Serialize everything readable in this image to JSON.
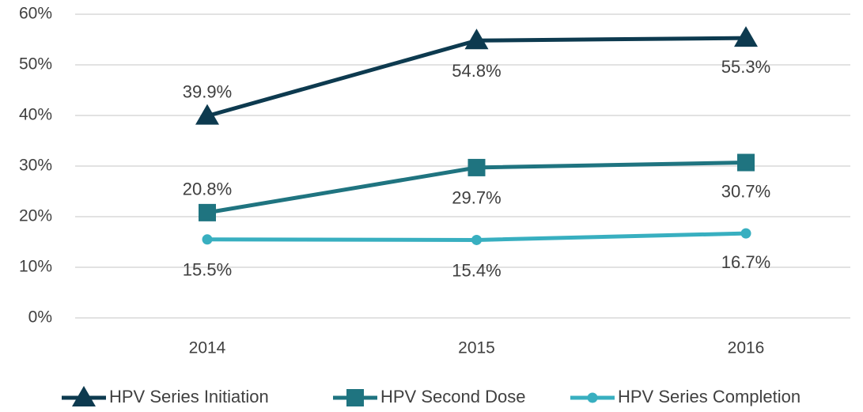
{
  "chart_data": {
    "type": "line",
    "categories": [
      "2014",
      "2015",
      "2016"
    ],
    "series": [
      {
        "name": "HPV Series Initiation",
        "color": "#0d3a4f",
        "marker": "triangle",
        "values": [
          39.9,
          54.8,
          55.3
        ],
        "value_labels": [
          "39.9%",
          "54.8%",
          "55.3%"
        ]
      },
      {
        "name": "HPV Second Dose",
        "color": "#1f7480",
        "marker": "square",
        "values": [
          20.8,
          29.7,
          30.7
        ],
        "value_labels": [
          "20.8%",
          "29.7%",
          "30.7%"
        ]
      },
      {
        "name": "HPV Series Completion",
        "color": "#38afc0",
        "marker": "circle",
        "values": [
          15.5,
          15.4,
          16.7
        ],
        "value_labels": [
          "15.5%",
          "15.4%",
          "16.7%"
        ]
      }
    ],
    "ylim": [
      0,
      60
    ],
    "yticks": [
      {
        "value": 0,
        "label": "0%"
      },
      {
        "value": 10,
        "label": "10%"
      },
      {
        "value": 20,
        "label": "20%"
      },
      {
        "value": 30,
        "label": "30%"
      },
      {
        "value": 40,
        "label": "40%"
      },
      {
        "value": 50,
        "label": "50%"
      },
      {
        "value": 60,
        "label": "60%"
      }
    ],
    "grid": true,
    "legend": "bottom"
  }
}
